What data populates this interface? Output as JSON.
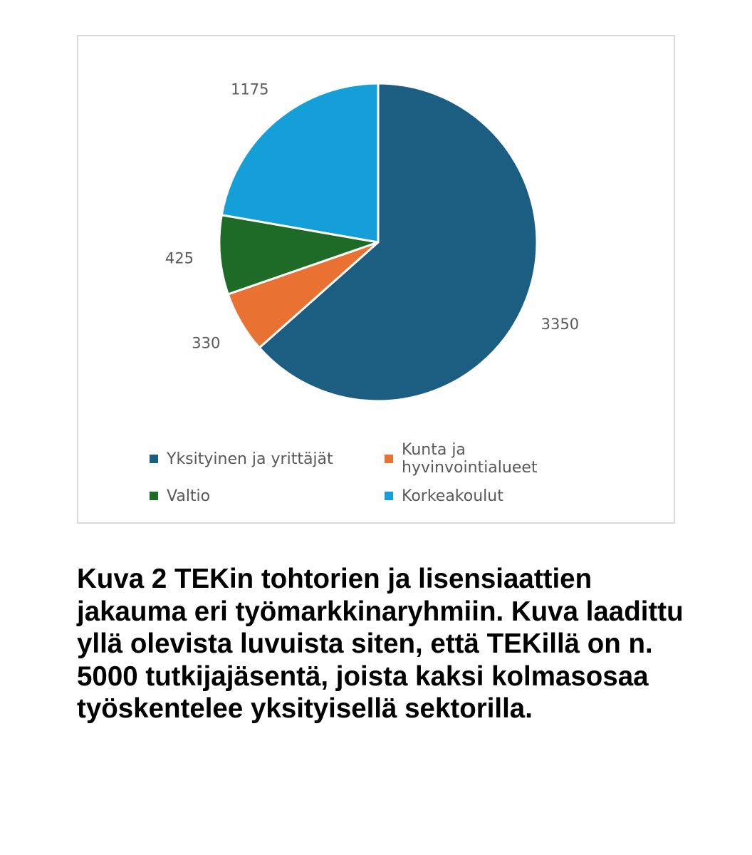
{
  "chart_data": {
    "type": "pie",
    "title": "",
    "slices": [
      {
        "label": "Yksityinen ja yrittäjät",
        "value": 3350,
        "value_label": "3350",
        "color": "#1b5e82"
      },
      {
        "label": "Kunta ja hyvinvointialueet",
        "value": 330,
        "value_label": "330",
        "color": "#e97132"
      },
      {
        "label": "Valtio",
        "value": 425,
        "value_label": "425",
        "color": "#1d6b27"
      },
      {
        "label": "Korkeakoulut",
        "value": 1175,
        "value_label": "1175",
        "color": "#149fd9"
      }
    ],
    "start_angle": "12 o'clock",
    "direction": "clockwise",
    "legend_position": "bottom"
  },
  "caption": "Kuva 2 TEKin tohtorien ja lisensiaattien jakauma eri työmarkkinaryhmiin. Kuva laadittu yllä olevista luvuista siten, että TEKillä on n. 5000 tutkijajäsentä, joista kaksi kolmasosaa työskentelee yksityisellä sektorilla."
}
